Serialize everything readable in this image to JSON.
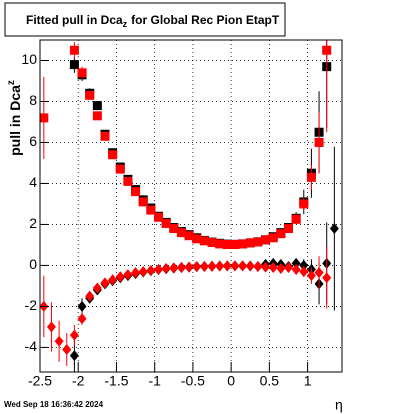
{
  "chart_data": {
    "type": "scatter",
    "title_parts": [
      "Fitted pull in Dca",
      "z",
      "for Global Rec Pion EtapT"
    ],
    "ylabel_parts": [
      "pull in Dca",
      "z"
    ],
    "xlabel": "η",
    "footer": "Wed Sep 18 16:36:42 2024",
    "xlim": [
      -2.5,
      1.45
    ],
    "xticks": [
      -2.5,
      -2,
      -1.5,
      -1,
      -0.5,
      0,
      0.5,
      1
    ],
    "ylim": [
      -5.2,
      11
    ],
    "yticks": [
      -4,
      -2,
      0,
      2,
      4,
      6,
      8,
      10
    ],
    "grid": true,
    "series": [
      {
        "color": "#000000",
        "marker": "square",
        "x": [
          -2.05,
          -1.95,
          -1.85,
          -1.75,
          -1.65,
          -1.55,
          -1.45,
          -1.35,
          -1.25,
          -1.15,
          -1.05,
          -0.95,
          -0.85,
          -0.75,
          -0.65,
          -0.55,
          -0.45,
          -0.35,
          -0.25,
          -0.15,
          -0.05,
          0.05,
          0.15,
          0.25,
          0.35,
          0.45,
          0.55,
          0.65,
          0.75,
          0.85,
          0.95,
          1.05,
          1.15,
          1.25
        ],
        "values": [
          9.8,
          9.3,
          8.4,
          7.8,
          6.4,
          5.5,
          4.8,
          4.2,
          3.7,
          3.2,
          2.8,
          2.4,
          2.1,
          1.85,
          1.65,
          1.5,
          1.35,
          1.22,
          1.14,
          1.08,
          1.04,
          1.03,
          1.05,
          1.1,
          1.15,
          1.25,
          1.4,
          1.6,
          1.85,
          2.3,
          3.1,
          4.5,
          6.5,
          9.7
        ],
        "errors": [
          0.4,
          0.3,
          0.25,
          0.2,
          0.15,
          0.1,
          0.08,
          0.06,
          0.05,
          0.05,
          0.05,
          0.04,
          0.04,
          0.04,
          0.03,
          0.03,
          0.03,
          0.03,
          0.03,
          0.03,
          0.03,
          0.03,
          0.03,
          0.03,
          0.04,
          0.05,
          0.06,
          0.08,
          0.15,
          0.3,
          0.6,
          1.2,
          2.0,
          3.0
        ]
      },
      {
        "color": "#ff0000",
        "marker": "square",
        "x": [
          -2.45,
          -2.05,
          -1.95,
          -1.85,
          -1.75,
          -1.65,
          -1.55,
          -1.45,
          -1.35,
          -1.25,
          -1.15,
          -1.05,
          -0.95,
          -0.85,
          -0.75,
          -0.65,
          -0.55,
          -0.45,
          -0.35,
          -0.25,
          -0.15,
          -0.05,
          0.05,
          0.15,
          0.25,
          0.35,
          0.45,
          0.55,
          0.65,
          0.75,
          0.85,
          0.95,
          1.05,
          1.15,
          1.25
        ],
        "values": [
          7.2,
          10.5,
          9.4,
          8.3,
          7.3,
          6.3,
          5.4,
          4.7,
          4.1,
          3.6,
          3.1,
          2.7,
          2.35,
          2.05,
          1.8,
          1.6,
          1.45,
          1.3,
          1.2,
          1.12,
          1.05,
          1.02,
          1.02,
          1.05,
          1.1,
          1.15,
          1.25,
          1.35,
          1.55,
          1.8,
          2.25,
          3.0,
          4.3,
          6.0,
          10.5
        ],
        "errors": [
          2.0,
          0.4,
          0.3,
          0.2,
          0.15,
          0.1,
          0.1,
          0.08,
          0.06,
          0.05,
          0.05,
          0.05,
          0.04,
          0.04,
          0.04,
          0.03,
          0.03,
          0.03,
          0.03,
          0.03,
          0.03,
          0.03,
          0.03,
          0.03,
          0.03,
          0.03,
          0.04,
          0.05,
          0.06,
          0.08,
          0.15,
          0.3,
          0.6,
          1.5,
          4.0
        ]
      },
      {
        "color": "#000000",
        "marker": "diamond",
        "x": [
          -2.05,
          -1.95,
          -1.85,
          -1.75,
          -1.65,
          -1.55,
          -1.45,
          -1.35,
          -1.25,
          -1.15,
          -1.05,
          -0.95,
          -0.85,
          -0.75,
          -0.65,
          -0.55,
          -0.45,
          -0.35,
          -0.25,
          -0.15,
          -0.05,
          0.05,
          0.15,
          0.25,
          0.35,
          0.45,
          0.55,
          0.65,
          0.75,
          0.85,
          0.95,
          1.05,
          1.15,
          1.25,
          1.35
        ],
        "values": [
          -4.4,
          -2.0,
          -1.6,
          -1.2,
          -0.9,
          -0.75,
          -0.6,
          -0.5,
          -0.4,
          -0.32,
          -0.26,
          -0.2,
          -0.16,
          -0.13,
          -0.1,
          -0.08,
          -0.06,
          -0.05,
          -0.04,
          -0.03,
          -0.02,
          -0.02,
          -0.02,
          -0.03,
          -0.05,
          0.05,
          0.1,
          0.05,
          -0.05,
          0.1,
          0.0,
          -0.2,
          -0.9,
          0.1,
          1.8
        ],
        "errors": [
          0.8,
          0.4,
          0.2,
          0.15,
          0.1,
          0.08,
          0.06,
          0.05,
          0.04,
          0.04,
          0.03,
          0.03,
          0.03,
          0.03,
          0.03,
          0.03,
          0.03,
          0.03,
          0.03,
          0.03,
          0.03,
          0.03,
          0.03,
          0.03,
          0.04,
          0.05,
          0.06,
          0.08,
          0.1,
          0.15,
          0.3,
          0.5,
          1.0,
          2.0,
          4.0
        ]
      },
      {
        "color": "#ff0000",
        "marker": "diamond",
        "x": [
          -2.45,
          -2.35,
          -2.25,
          -2.15,
          -2.05,
          -1.95,
          -1.85,
          -1.75,
          -1.65,
          -1.55,
          -1.45,
          -1.35,
          -1.25,
          -1.15,
          -1.05,
          -0.95,
          -0.85,
          -0.75,
          -0.65,
          -0.55,
          -0.45,
          -0.35,
          -0.25,
          -0.15,
          -0.05,
          0.05,
          0.15,
          0.25,
          0.35,
          0.45,
          0.55,
          0.65,
          0.75,
          0.85,
          0.95,
          1.05,
          1.15,
          1.25
        ],
        "values": [
          -2.0,
          -3.0,
          -3.7,
          -4.1,
          -3.4,
          -2.6,
          -1.5,
          -1.1,
          -0.85,
          -0.7,
          -0.55,
          -0.45,
          -0.35,
          -0.3,
          -0.25,
          -0.2,
          -0.15,
          -0.12,
          -0.1,
          -0.08,
          -0.06,
          -0.05,
          -0.04,
          -0.03,
          -0.02,
          -0.02,
          -0.02,
          -0.03,
          -0.05,
          -0.08,
          -0.1,
          -0.15,
          -0.1,
          -0.2,
          -0.3,
          -0.5,
          -0.35,
          -0.6
        ],
        "errors": [
          1.5,
          1.2,
          1.0,
          0.8,
          0.5,
          0.3,
          0.2,
          0.15,
          0.1,
          0.08,
          0.06,
          0.05,
          0.04,
          0.04,
          0.03,
          0.03,
          0.03,
          0.03,
          0.03,
          0.03,
          0.03,
          0.03,
          0.03,
          0.03,
          0.03,
          0.03,
          0.03,
          0.03,
          0.04,
          0.05,
          0.06,
          0.08,
          0.1,
          0.15,
          0.2,
          0.4,
          0.8,
          1.5
        ]
      }
    ]
  }
}
